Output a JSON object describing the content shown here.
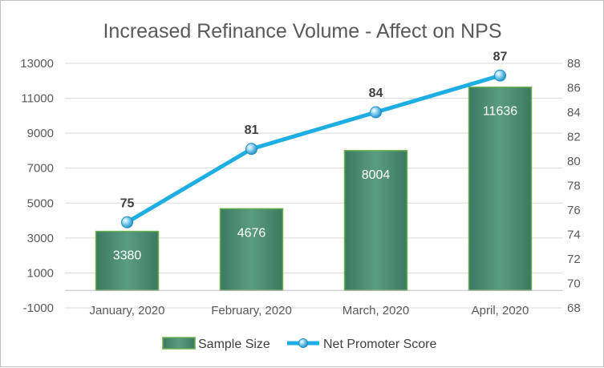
{
  "chart_data": {
    "type": "bar",
    "title": "Increased Refinance Volume - Affect on NPS",
    "categories": [
      "January, 2020",
      "February, 2020",
      "March, 2020",
      "April, 2020"
    ],
    "series": [
      {
        "name": "Sample Size",
        "type": "bar",
        "axis": "left",
        "values": [
          3380,
          4676,
          8004,
          11636
        ],
        "color": "#4e8f76"
      },
      {
        "name": "Net Promoter Score",
        "type": "line",
        "axis": "right",
        "values": [
          75,
          81,
          84,
          87
        ],
        "color": "#1faee3"
      }
    ],
    "y_left": {
      "ylim": [
        -1000,
        13000
      ],
      "ticks": [
        -1000,
        1000,
        3000,
        5000,
        7000,
        9000,
        11000,
        13000
      ]
    },
    "y_right": {
      "ylim": [
        68,
        88
      ],
      "ticks": [
        68,
        70,
        72,
        74,
        76,
        78,
        80,
        82,
        84,
        86,
        88
      ]
    },
    "grid": true,
    "legend": "bottom"
  }
}
